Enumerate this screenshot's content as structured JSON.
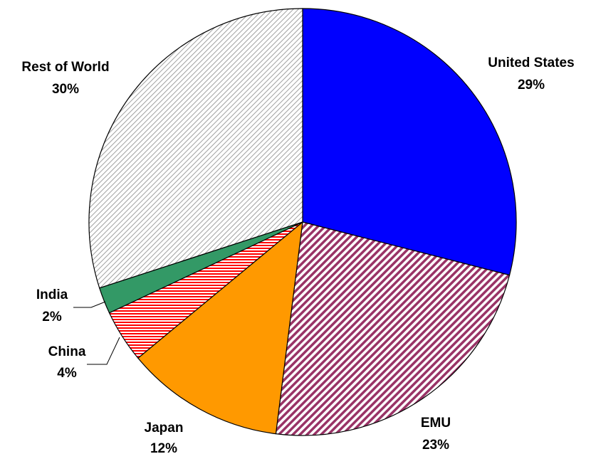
{
  "chart_data": {
    "type": "pie",
    "slices": [
      {
        "label": "United States",
        "value": 29,
        "value_label": "29%",
        "color": "#0000ff",
        "pattern": "solid"
      },
      {
        "label": "EMU",
        "value": 23,
        "value_label": "23%",
        "color": "#993366",
        "pattern": "diagonal-hatch"
      },
      {
        "label": "Japan",
        "value": 12,
        "value_label": "12%",
        "color": "#ff9900",
        "pattern": "solid"
      },
      {
        "label": "China",
        "value": 4,
        "value_label": "4%",
        "color": "#ff0000",
        "pattern": "horizontal-hatch"
      },
      {
        "label": "India",
        "value": 2,
        "value_label": "2%",
        "color": "#339966",
        "pattern": "solid"
      },
      {
        "label": "Rest of World",
        "value": 30,
        "value_label": "30%",
        "color": "#a0a0a0",
        "pattern": "light-diagonal-hatch"
      }
    ],
    "start": "12 o'clock",
    "direction": "clockwise",
    "legend": "none"
  }
}
